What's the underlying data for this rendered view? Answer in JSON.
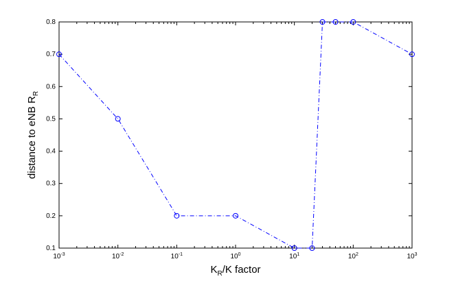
{
  "chart_data": {
    "type": "line",
    "title": "",
    "xscale": "log",
    "xlim": [
      0.001,
      1000
    ],
    "ylim": [
      0.1,
      0.8
    ],
    "xlabel": {
      "main": "K",
      "sub": "R",
      "rest": "/K factor"
    },
    "ylabel": {
      "main": "distance to eNB R",
      "sub": "R"
    },
    "x_ticks": [
      {
        "value": 0.001,
        "base": "10",
        "exp": "-3"
      },
      {
        "value": 0.01,
        "base": "10",
        "exp": "-2"
      },
      {
        "value": 0.1,
        "base": "10",
        "exp": "-1"
      },
      {
        "value": 1,
        "base": "10",
        "exp": "0"
      },
      {
        "value": 10,
        "base": "10",
        "exp": "1"
      },
      {
        "value": 100,
        "base": "10",
        "exp": "2"
      },
      {
        "value": 1000,
        "base": "10",
        "exp": "3"
      }
    ],
    "y_ticks": [
      "0.1",
      "0.2",
      "0.3",
      "0.4",
      "0.5",
      "0.6",
      "0.7",
      "0.8"
    ],
    "grid": false,
    "series": [
      {
        "color": "#0000ff",
        "line_style": "dash-dot",
        "marker": "circle",
        "x": [
          0.001,
          0.01,
          0.1,
          1,
          10,
          20,
          30,
          50,
          100,
          1000
        ],
        "y": [
          0.7,
          0.5,
          0.2,
          0.2,
          0.1,
          0.1,
          0.8,
          0.8,
          0.8,
          0.7
        ]
      }
    ]
  }
}
